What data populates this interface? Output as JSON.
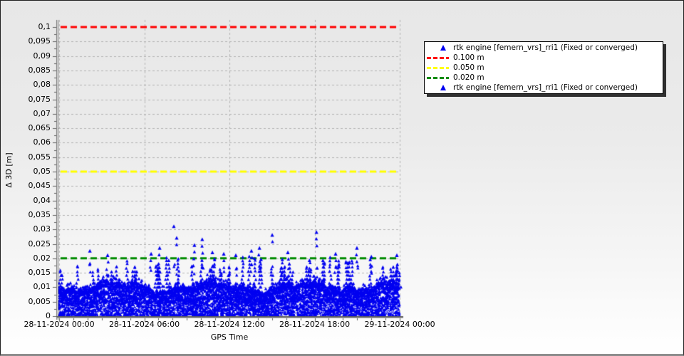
{
  "axes": {
    "y": {
      "title": "Δ 3D [m]",
      "min": 0,
      "max": 0.1,
      "tick_step": 0.005,
      "decimal_separator": ",",
      "tick_labels": [
        "0",
        "0,005",
        "0,01",
        "0,015",
        "0,02",
        "0,025",
        "0,03",
        "0,035",
        "0,04",
        "0,045",
        "0,05",
        "0,055",
        "0,06",
        "0,065",
        "0,07",
        "0,075",
        "0,08",
        "0,085",
        "0,09",
        "0,095",
        "0,1"
      ]
    },
    "x": {
      "title": "GPS Time",
      "tick_labels": [
        "28-11-2024 00:00",
        "28-11-2024 06:00",
        "28-11-2024 12:00",
        "28-11-2024 18:00",
        "29-11-2024 00:00"
      ],
      "major_tick_hours": 6,
      "minor_tick_hours": 1
    }
  },
  "legend": {
    "items": [
      {
        "type": "marker",
        "color": "#0000f0",
        "label": "rtk engine [femern_vrs]_rri1 (Fixed or converged)"
      },
      {
        "type": "line",
        "color": "#ff0000",
        "label": "0.100 m"
      },
      {
        "type": "line",
        "color": "#ffff00",
        "label": "0.050 m"
      },
      {
        "type": "line",
        "color": "#008c00",
        "label": "0.020 m"
      },
      {
        "type": "marker",
        "color": "#0000f0",
        "label": "rtk engine [femern_vrs]_rri1 (Fixed or converged)"
      }
    ]
  },
  "chart_data": {
    "type": "scatter",
    "title": "",
    "xlabel": "GPS Time",
    "ylabel": "Δ 3D [m]",
    "ylim": [
      0,
      0.1
    ],
    "x_range": [
      "28-11-2024 00:00",
      "29-11-2024 00:00"
    ],
    "grid": "dashed; horizontal every 0.005 m, vertical every 6 h",
    "legend_position": "right",
    "series": [
      {
        "name": "rtk engine [femern_vrs]_rri1 (Fixed or converged)",
        "marker": "triangle",
        "color": "#0000f0",
        "description": "dense band of RTK epochs covering the full day; Δ3D mostly 0.000-0.015 m with jagged peaks frequently reaching ~0.020 m",
        "band": {
          "min": 0.0,
          "typical_max": 0.013,
          "frequent_peaks_up_to": 0.02
        },
        "outliers": [
          {
            "t": "02:10",
            "v": 0.0225
          },
          {
            "t": "03:25",
            "v": 0.021
          },
          {
            "t": "06:29",
            "v": 0.0215
          },
          {
            "t": "07:05",
            "v": 0.0235
          },
          {
            "t": "08:05",
            "v": 0.031
          },
          {
            "t": "08:17",
            "v": 0.027
          },
          {
            "t": "09:32",
            "v": 0.0245
          },
          {
            "t": "10:05",
            "v": 0.0265
          },
          {
            "t": "10:48",
            "v": 0.022
          },
          {
            "t": "11:36",
            "v": 0.0215
          },
          {
            "t": "12:27",
            "v": 0.021
          },
          {
            "t": "13:33",
            "v": 0.0225
          },
          {
            "t": "14:07",
            "v": 0.0235
          },
          {
            "t": "15:01",
            "v": 0.028
          },
          {
            "t": "16:07",
            "v": 0.022
          },
          {
            "t": "18:08",
            "v": 0.029
          },
          {
            "t": "19:29",
            "v": 0.0215
          },
          {
            "t": "20:59",
            "v": 0.0235
          },
          {
            "t": "22:00",
            "v": 0.0205
          },
          {
            "t": "23:48",
            "v": 0.021
          }
        ]
      }
    ],
    "thresholds": [
      {
        "value": 0.1,
        "label": "0.100 m",
        "color": "#ff0000",
        "style": "dashed"
      },
      {
        "value": 0.05,
        "label": "0.050 m",
        "color": "#ffff00",
        "style": "dashed"
      },
      {
        "value": 0.02,
        "label": "0.020 m",
        "color": "#008c00",
        "style": "dashed"
      }
    ]
  },
  "colors": {
    "series_blue": "#0000f0",
    "threshold_red": "#ff0000",
    "threshold_yellow": "#ffff00",
    "threshold_green": "#008c00",
    "grid": "#b2b2b2",
    "axis": "#6a6a6a",
    "tick": "#606060",
    "background_top": "#e7e7e7",
    "background_bottom": "#ffffff",
    "legend_bg": "#ffffff",
    "legend_border": "#000000"
  }
}
